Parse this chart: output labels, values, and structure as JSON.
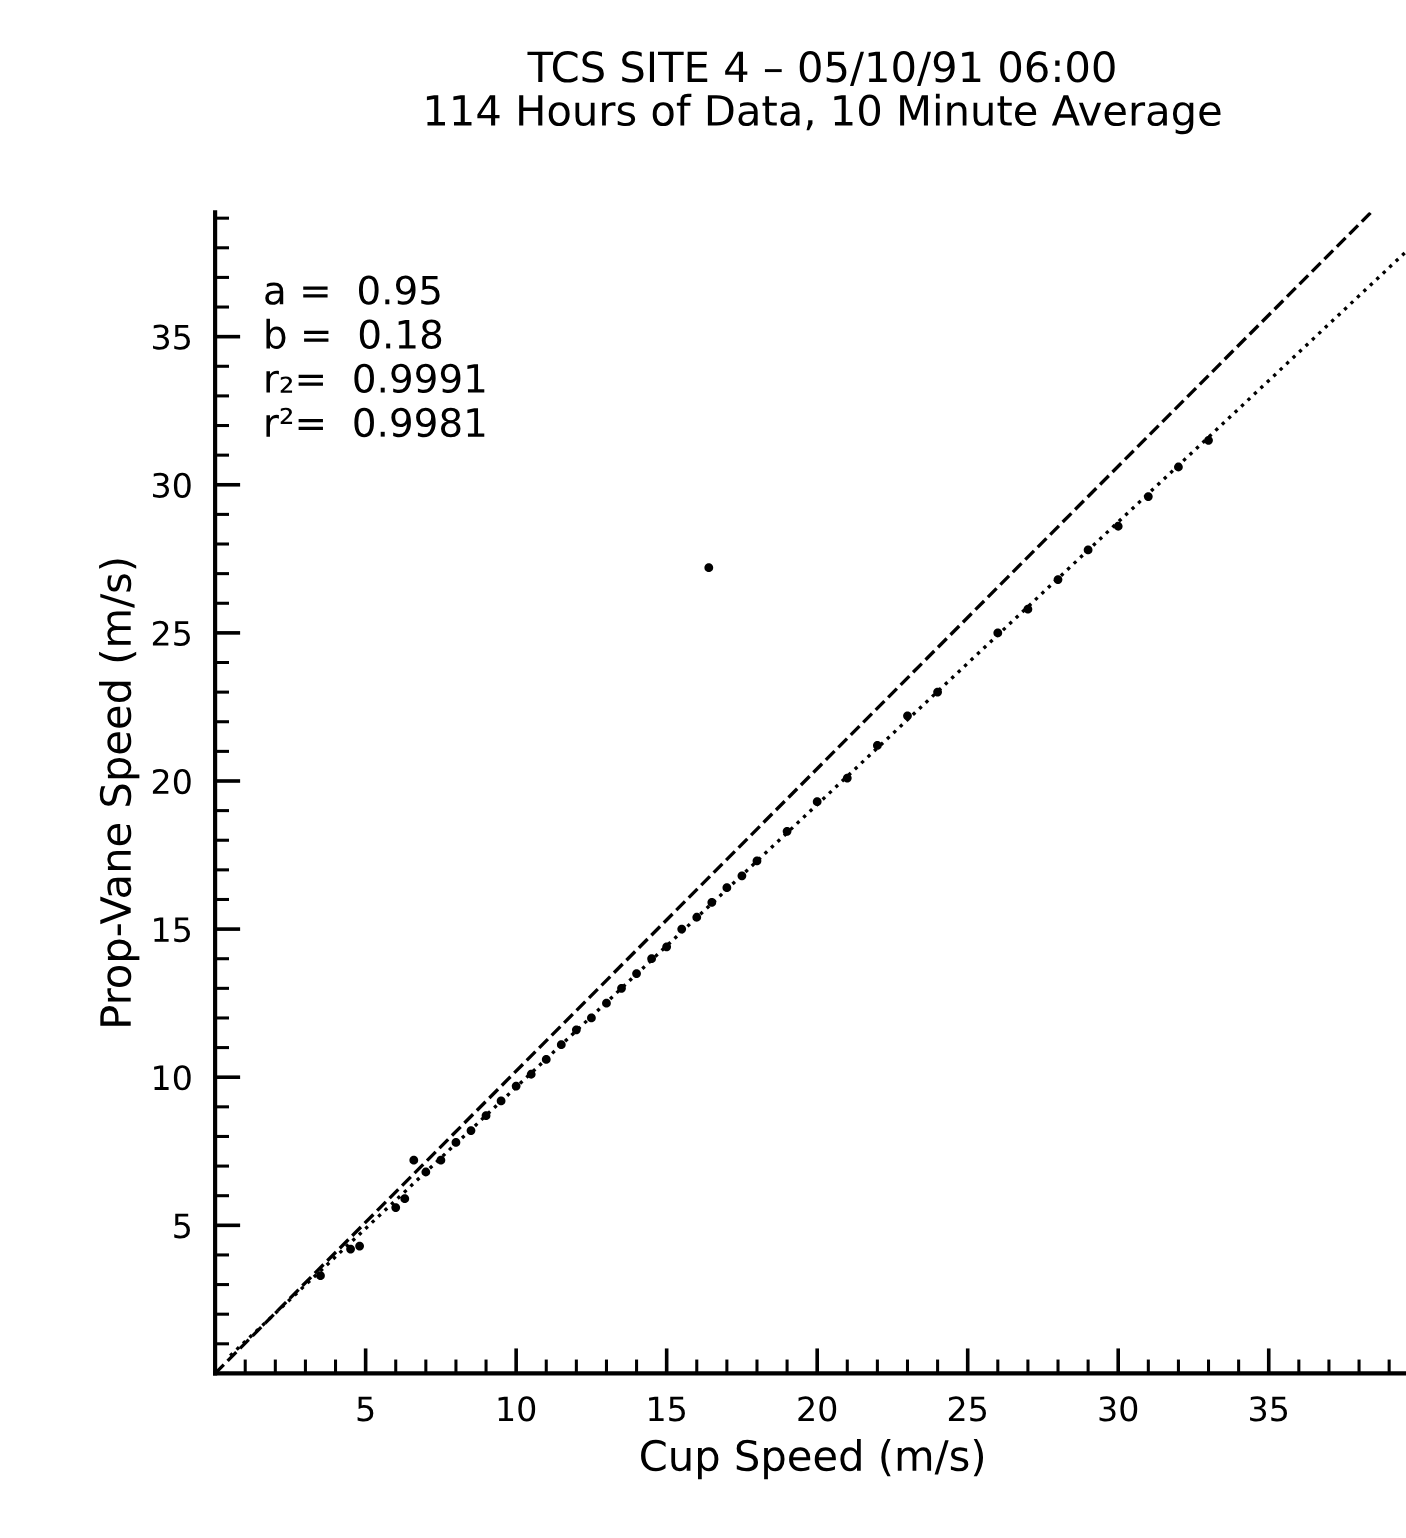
{
  "chart_data": {
    "type": "scatter",
    "title": "TCS SITE 4 – 05/10/91 06:00\n114 Hours of Data, 10 Minute Average",
    "xlabel": "Cup Speed (m/s)",
    "ylabel": "Prop-Vane Speed (m/s)",
    "xlim": [
      0,
      39.7
    ],
    "ylim": [
      0,
      39.2
    ],
    "xticks": [
      5,
      10,
      15,
      20,
      25,
      30,
      35
    ],
    "yticks": [
      5,
      10,
      15,
      20,
      25,
      30,
      35
    ],
    "grid": false,
    "legend": false,
    "annotations": [
      "a =  0.95",
      "b =  0.18",
      "r₂=  0.9991",
      "r²=  0.9981"
    ],
    "series": [
      {
        "marker": "circle",
        "color": "#000000",
        "x": [
          3.5,
          4.5,
          4.8,
          6.0,
          6.3,
          6.6,
          7.0,
          7.5,
          8.0,
          8.5,
          9.0,
          9.5,
          10.0,
          10.5,
          11.0,
          11.5,
          12.0,
          12.5,
          13.0,
          13.5,
          14.0,
          14.5,
          15.0,
          15.5,
          16.0,
          16.5,
          17.0,
          17.5,
          18.0,
          19.0,
          20.0,
          21.0,
          22.0,
          23.0,
          24.0,
          26.0,
          27.0,
          28.0,
          29.0,
          30.0,
          31.0,
          32.0,
          33.0,
          16.4
        ],
        "values": [
          3.3,
          4.2,
          4.3,
          5.6,
          5.9,
          7.2,
          6.8,
          7.2,
          7.8,
          8.2,
          8.7,
          9.2,
          9.7,
          10.1,
          10.6,
          11.1,
          11.6,
          12.0,
          12.5,
          13.0,
          13.5,
          14.0,
          14.4,
          15.0,
          15.4,
          15.9,
          16.4,
          16.8,
          17.3,
          18.3,
          19.3,
          20.1,
          21.2,
          22.2,
          23.0,
          25.0,
          25.8,
          26.8,
          27.8,
          28.6,
          29.6,
          30.6,
          31.5,
          27.2
        ]
      },
      {
        "type": "line",
        "color": "#000000",
        "line_style": "dashed",
        "x": [
          0,
          38.4
        ],
        "values": [
          0,
          39.2
        ]
      },
      {
        "type": "line",
        "color": "#000000",
        "line_style": "dotted",
        "x": [
          0.5,
          39.7
        ],
        "values": [
          0.6,
          38.0
        ]
      }
    ]
  }
}
